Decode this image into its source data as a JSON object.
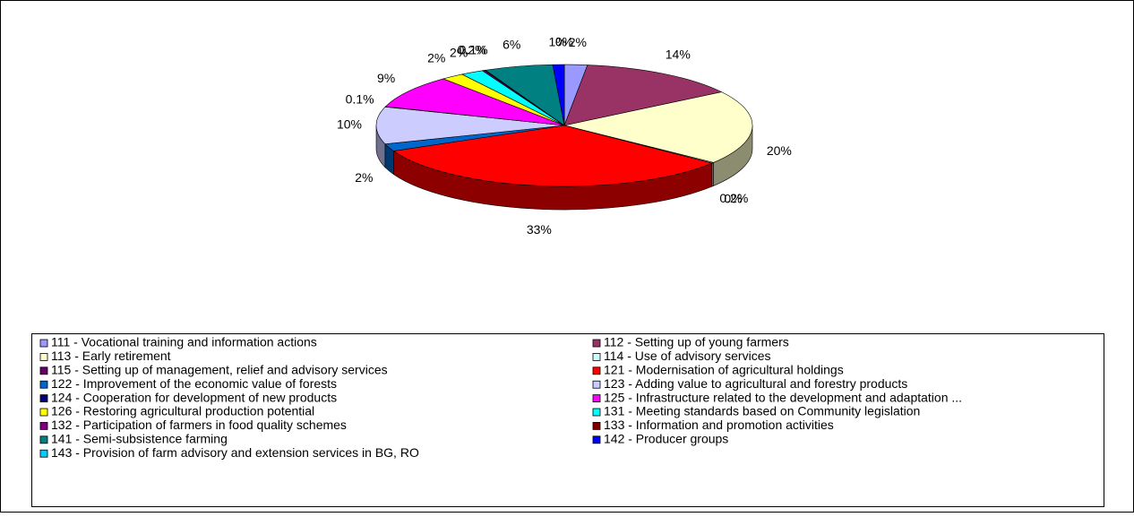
{
  "chart_data": {
    "type": "pie3d",
    "categories": [
      "111 - Vocational training and information actions",
      "112 - Setting up of young farmers",
      "113 - Early retirement",
      "114 - Use of advisory services",
      "115 - Setting up of management, relief and advisory services",
      "121 - Modernisation of agricultural holdings",
      "122 - Improvement of  the economic value of forests",
      "123 - Adding value to agricultural and forestry products",
      "124 - Cooperation for development of new products",
      "125 - Infrastructure related to the development and adaptation ...",
      "126 - Restoring agricultural production potential",
      "131 - Meeting standards based on Community legislation",
      "132 - Participation of  farmers in food quality schemes",
      "133 - Information and promotion activities",
      "141 - Semi-subsistence farming",
      "142 - Producer groups",
      "143 - Provision of farm advisory and extension services in BG, RO"
    ],
    "values": [
      2,
      14,
      20,
      0.2,
      0,
      33,
      2,
      10,
      0.1,
      9,
      2,
      2,
      0.2,
      0.1,
      6,
      1,
      0
    ],
    "value_labels": [
      "2%",
      "14%",
      "20%",
      "0.2%",
      "0%",
      "33%",
      "2%",
      "10%",
      "0.1%",
      "9%",
      "2%",
      "2%",
      "0.2%",
      "0.1%",
      "6%",
      "1%",
      "0%"
    ],
    "colors": [
      "#9999ff",
      "#993366",
      "#ffffcc",
      "#ccffff",
      "#660066",
      "#ff0000",
      "#0066cc",
      "#ccccff",
      "#000080",
      "#ff00ff",
      "#ffff00",
      "#00ffff",
      "#800080",
      "#800000",
      "#008080",
      "#0000ff",
      "#00ccff"
    ],
    "legend": "bottom"
  }
}
